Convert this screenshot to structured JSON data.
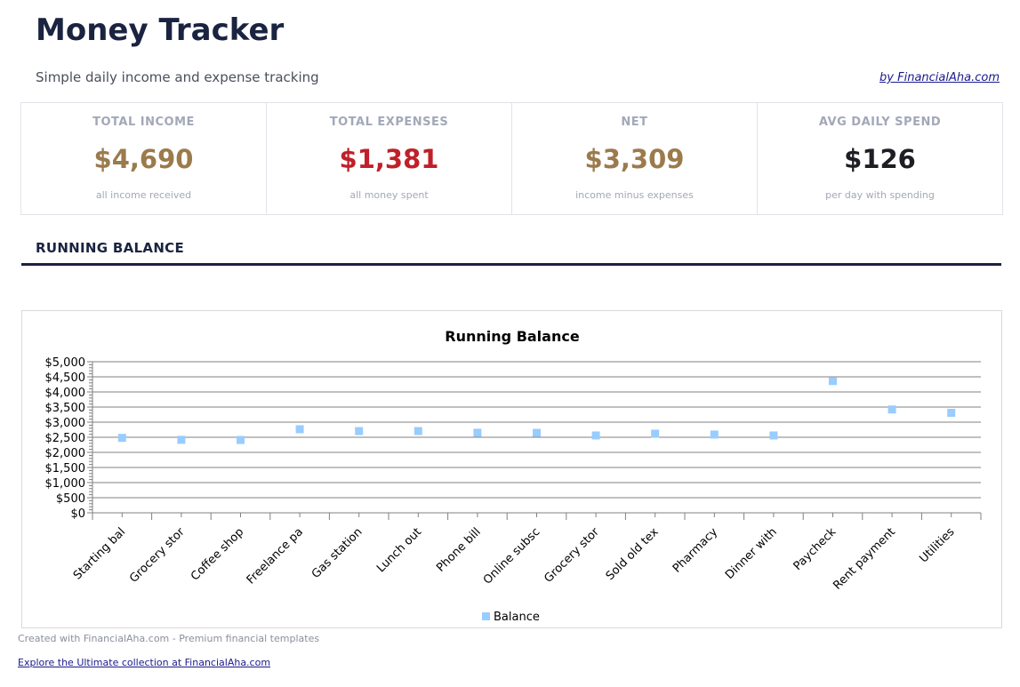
{
  "header": {
    "title": "Money Tracker",
    "subtitle": "Simple daily income and expense tracking",
    "byline": "by FinancialAha.com"
  },
  "cards": [
    {
      "label": "TOTAL INCOME",
      "value": "$4,690",
      "desc": "all income received",
      "color": "#9b7a4c"
    },
    {
      "label": "TOTAL EXPENSES",
      "value": "$1,381",
      "desc": "all money spent",
      "color": "#c0202a"
    },
    {
      "label": "NET",
      "value": "$3,309",
      "desc": "income minus expenses",
      "color": "#9b7a4c"
    },
    {
      "label": "AVG DAILY SPEND",
      "value": "$126",
      "desc": "per day with spending",
      "color": "#1e1e24"
    }
  ],
  "section": {
    "title": "RUNNING BALANCE"
  },
  "chart_data": {
    "type": "scatter",
    "title": "Running Balance",
    "categories": [
      "Starting bal",
      "Grocery stor",
      "Coffee shop",
      "Freelance pa",
      "Gas station",
      "Lunch out",
      "Phone bill",
      "Online subsc",
      "Grocery stor",
      "Sold old tex",
      "Pharmacy",
      "Dinner with",
      "Paycheck",
      "Rent payment",
      "Utilities"
    ],
    "series": [
      {
        "name": "Balance",
        "values": [
          2480,
          2415,
          2410,
          2765,
          2705,
          2705,
          2650,
          2645,
          2560,
          2620,
          2590,
          2560,
          4360,
          3420,
          3309
        ],
        "color": "#99ccff"
      }
    ],
    "yticks": [
      "$0",
      "$500",
      "$1,000",
      "$1,500",
      "$2,000",
      "$2,500",
      "$3,000",
      "$3,500",
      "$4,000",
      "$4,500",
      "$5,000"
    ],
    "ylim": [
      0,
      5000
    ],
    "grid": true,
    "legend": "bottom"
  },
  "footer": {
    "credit": "Created with FinancialAha.com - Premium financial templates",
    "link": "Explore the Ultimate collection at FinancialAha.com"
  }
}
